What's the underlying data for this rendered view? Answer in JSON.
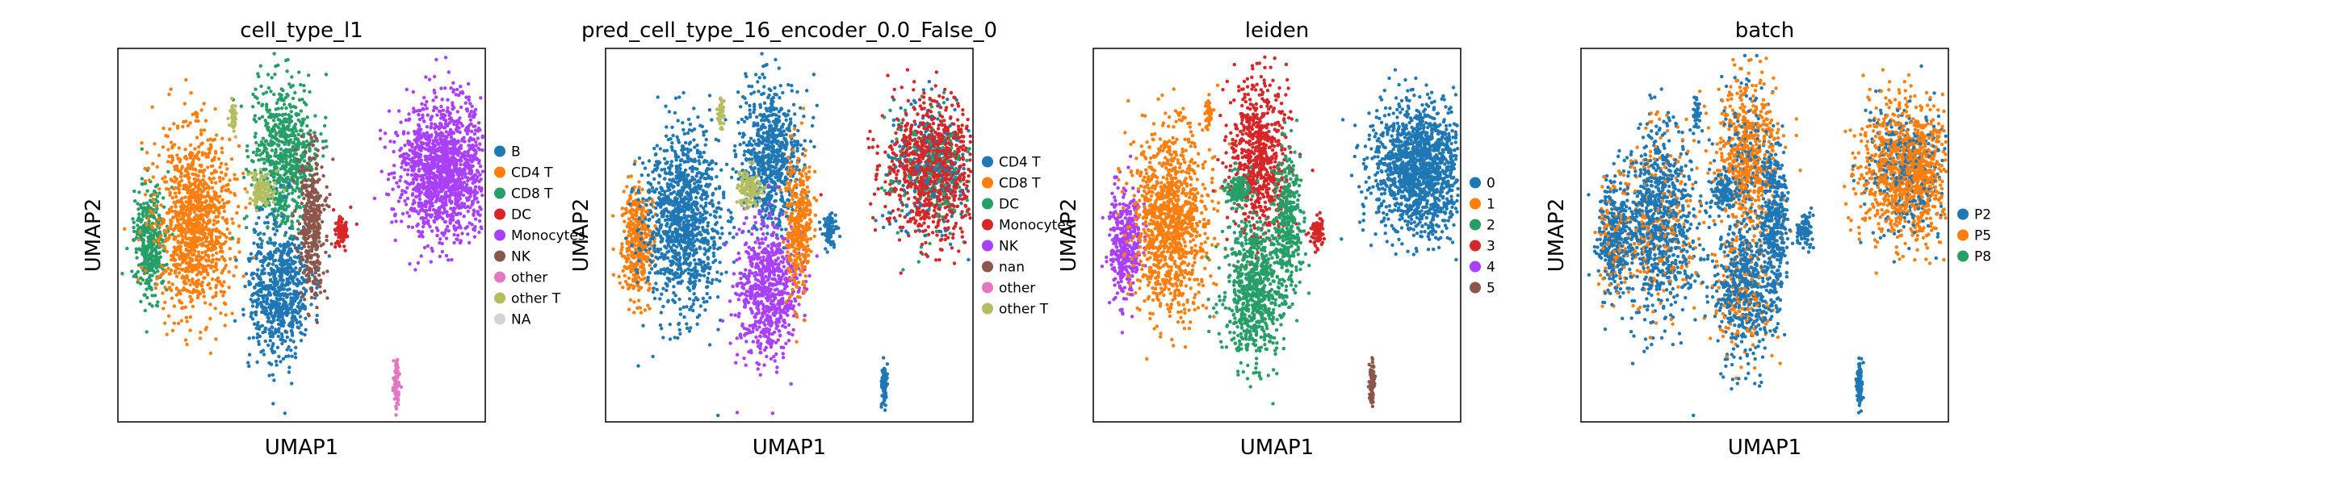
{
  "chart_data": [
    {
      "type": "scatter",
      "title": "cell_type_l1",
      "xlabel": "UMAP1",
      "ylabel": "UMAP2",
      "legend_position": "right",
      "grid": false,
      "categories": [
        "B",
        "CD4 T",
        "CD8 T",
        "DC",
        "Monocytes",
        "NK",
        "other",
        "other T",
        "NA"
      ],
      "colors": [
        "#1f77b4",
        "#ff7f0e",
        "#279e68",
        "#d62728",
        "#aa40fc",
        "#8c564b",
        "#e377c2",
        "#b5bd61",
        "#d3d3d3"
      ]
    },
    {
      "type": "scatter",
      "title": "pred_cell_type_16_encoder_0.0_False_0",
      "xlabel": "UMAP1",
      "ylabel": "UMAP2",
      "legend_position": "right",
      "grid": false,
      "categories": [
        "CD4 T",
        "CD8 T",
        "DC",
        "Monocytes",
        "NK",
        "nan",
        "other",
        "other T"
      ],
      "colors": [
        "#1f77b4",
        "#ff7f0e",
        "#279e68",
        "#d62728",
        "#aa40fc",
        "#8c564b",
        "#e377c2",
        "#b5bd61"
      ]
    },
    {
      "type": "scatter",
      "title": "leiden",
      "xlabel": "UMAP1",
      "ylabel": "UMAP2",
      "legend_position": "right",
      "grid": false,
      "categories": [
        "0",
        "1",
        "2",
        "3",
        "4",
        "5"
      ],
      "colors": [
        "#1f77b4",
        "#ff7f0e",
        "#279e68",
        "#d62728",
        "#aa40fc",
        "#8c564b"
      ]
    },
    {
      "type": "scatter",
      "title": "batch",
      "xlabel": "UMAP1",
      "ylabel": "UMAP2",
      "legend_position": "right",
      "grid": false,
      "categories": [
        "P2",
        "P5",
        "P8"
      ],
      "colors": [
        "#1f77b4",
        "#ff7f0e",
        "#279e68"
      ]
    }
  ]
}
